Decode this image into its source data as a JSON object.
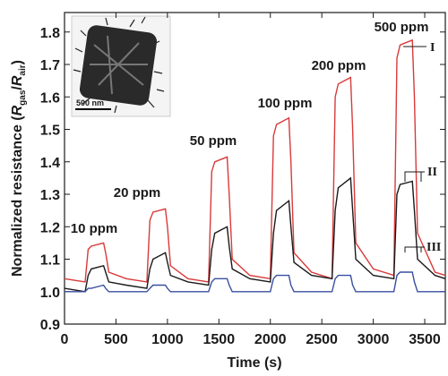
{
  "chart_data": {
    "type": "line",
    "xlabel": "Time (s)",
    "ylabel": {
      "prefix": "Normalized resistance (",
      "r1": "R",
      "sub1": "gas",
      "slash": "/",
      "r2": "R",
      "sub2": "air",
      "suffix": ")"
    },
    "annotations": [
      "10 ppm",
      "20 ppm",
      "50 ppm",
      "100 ppm",
      "200 ppm",
      "500 ppm"
    ],
    "inset": {
      "scale_bar": "500 nm"
    },
    "x": [
      0,
      200,
      230,
      260,
      380,
      400,
      430,
      600,
      800,
      830,
      860,
      980,
      1000,
      1030,
      1200,
      1400,
      1430,
      1460,
      1580,
      1600,
      1630,
      1800,
      2000,
      2030,
      2060,
      2180,
      2200,
      2230,
      2400,
      2600,
      2630,
      2660,
      2780,
      2800,
      2830,
      3000,
      3200,
      3230,
      3260,
      3380,
      3400,
      3430,
      3600,
      3700
    ],
    "series": [
      {
        "name": "I",
        "color": "#d93a3a",
        "values": [
          1.04,
          1.03,
          1.13,
          1.14,
          1.15,
          1.12,
          1.06,
          1.04,
          1.03,
          1.22,
          1.245,
          1.255,
          1.2,
          1.08,
          1.04,
          1.03,
          1.37,
          1.4,
          1.415,
          1.3,
          1.1,
          1.05,
          1.04,
          1.48,
          1.515,
          1.535,
          1.4,
          1.12,
          1.06,
          1.04,
          1.6,
          1.64,
          1.66,
          1.5,
          1.15,
          1.07,
          1.05,
          1.72,
          1.76,
          1.775,
          1.6,
          1.18,
          1.06,
          1.05
        ]
      },
      {
        "name": "II",
        "color": "#1a1a1a",
        "values": [
          1.01,
          1.0,
          1.05,
          1.07,
          1.08,
          1.06,
          1.03,
          1.02,
          1.01,
          1.07,
          1.1,
          1.12,
          1.09,
          1.05,
          1.03,
          1.02,
          1.13,
          1.18,
          1.2,
          1.14,
          1.07,
          1.04,
          1.03,
          1.18,
          1.25,
          1.28,
          1.2,
          1.09,
          1.05,
          1.04,
          1.25,
          1.32,
          1.35,
          1.25,
          1.1,
          1.05,
          1.04,
          1.3,
          1.33,
          1.34,
          1.25,
          1.1,
          1.05,
          1.04
        ]
      },
      {
        "name": "III",
        "color": "#3a4fa0",
        "values": [
          1.0,
          1.0,
          1.01,
          1.01,
          1.02,
          1.01,
          1.0,
          1.0,
          1.0,
          1.01,
          1.02,
          1.02,
          1.01,
          1.0,
          1.0,
          1.0,
          1.03,
          1.04,
          1.04,
          1.02,
          1.0,
          1.0,
          1.0,
          1.04,
          1.05,
          1.05,
          1.02,
          1.0,
          1.0,
          1.0,
          1.04,
          1.05,
          1.05,
          1.02,
          1.0,
          1.0,
          1.0,
          1.05,
          1.06,
          1.06,
          1.03,
          1.0,
          1.0,
          1.0
        ]
      }
    ],
    "xlim": [
      0,
      3700
    ],
    "xticks": [
      0,
      500,
      1000,
      1500,
      2000,
      2500,
      3000,
      3500
    ],
    "ylim": [
      0.9,
      1.86
    ],
    "yticks": [
      0.9,
      {
        "value": 1,
        "label": "1.0"
      },
      1.1,
      1.2,
      1.3,
      1.4,
      1.5,
      1.6,
      1.7,
      1.8
    ],
    "grid": false
  }
}
